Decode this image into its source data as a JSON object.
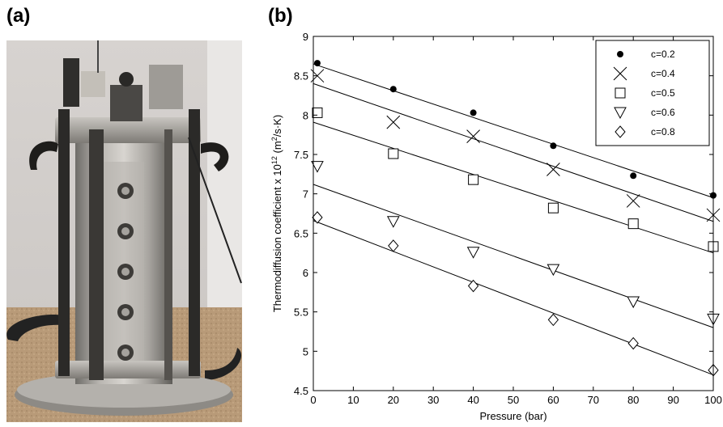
{
  "figure": {
    "panel_a_label": "(a)",
    "panel_b_label": "(b)",
    "photo_description": "photo-of-thermodiffusion-column"
  },
  "chart_data": {
    "type": "scatter",
    "title": "",
    "xlabel": "Pressure (bar)",
    "ylabel_main": "Thermodiffusion coefficient x 10",
    "ylabel_exp": "12",
    "ylabel_unit_open": " (m",
    "ylabel_unit_exp": "2",
    "ylabel_unit_close": "/s·K)",
    "xlim": [
      0,
      100
    ],
    "ylim": [
      4.5,
      9
    ],
    "xticks": [
      0,
      10,
      20,
      30,
      40,
      50,
      60,
      70,
      80,
      90,
      100
    ],
    "yticks": [
      4.5,
      5,
      5.5,
      6,
      6.5,
      7,
      7.5,
      8,
      8.5,
      9
    ],
    "ytick_labels": [
      "4.5",
      "5",
      "5.5",
      "6",
      "6.5",
      "7",
      "7.5",
      "8",
      "8.5",
      "9"
    ],
    "grid": false,
    "legend_position": "top-right",
    "series": [
      {
        "name": "c=0.2",
        "marker": "dot",
        "x": [
          1,
          20,
          40,
          60,
          80,
          100
        ],
        "y": [
          8.66,
          8.33,
          8.03,
          7.61,
          7.23,
          6.98
        ],
        "fit": [
          8.65,
          6.95
        ]
      },
      {
        "name": "c=0.4",
        "marker": "x",
        "x": [
          1,
          20,
          40,
          60,
          80,
          100
        ],
        "y": [
          8.5,
          7.91,
          7.73,
          7.31,
          6.91,
          6.73
        ],
        "fit": [
          8.4,
          6.65
        ]
      },
      {
        "name": "c=0.5",
        "marker": "square",
        "x": [
          1,
          20,
          40,
          60,
          80,
          100
        ],
        "y": [
          8.03,
          7.51,
          7.18,
          6.82,
          6.62,
          6.33
        ],
        "fit": [
          7.91,
          6.25
        ]
      },
      {
        "name": "c=0.6",
        "marker": "triangle-down",
        "x": [
          1,
          20,
          40,
          60,
          80,
          100
        ],
        "y": [
          7.35,
          6.65,
          6.26,
          6.04,
          5.63,
          5.41
        ],
        "fit": [
          7.12,
          5.3
        ]
      },
      {
        "name": "c=0.8",
        "marker": "diamond",
        "x": [
          1,
          20,
          40,
          60,
          80,
          100
        ],
        "y": [
          6.7,
          6.34,
          5.83,
          5.4,
          5.1,
          4.76
        ],
        "fit": [
          6.66,
          4.7
        ]
      }
    ]
  }
}
